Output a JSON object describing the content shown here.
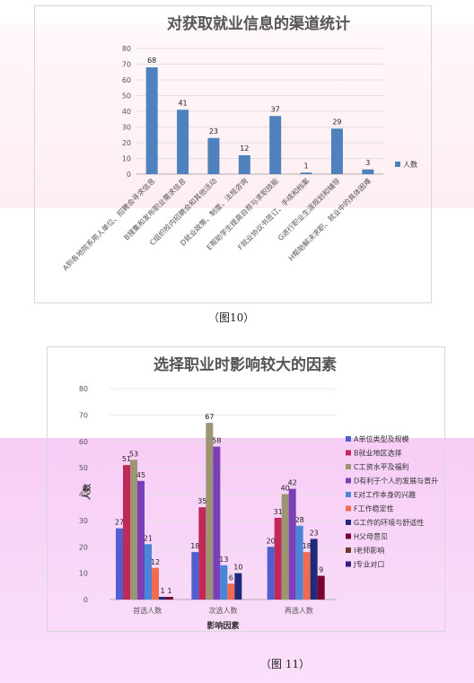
{
  "figure1": {
    "caption": "（图10）",
    "chart_data": {
      "type": "bar",
      "title": "对获取就业信息的渠道统计",
      "categories": [
        "A到各地院系用人单位、招聘会寻求信息",
        "B搜集和发布职业需求信息",
        "C组织校内招聘会和其他活动",
        "D就业政策、制度、法规咨询",
        "E帮助学生提高自荐与求职技能",
        "F就业协议书签订、手续和档案",
        "G进行职业生涯规划和辅导",
        "H帮助解决求职、就业中的具体困难"
      ],
      "series": [
        {
          "name": "人数",
          "values": [
            68,
            41,
            23,
            12,
            37,
            1,
            29,
            3
          ],
          "color": "#4f81bd"
        }
      ],
      "ylim": [
        0,
        80
      ],
      "yticks": [
        0,
        10,
        20,
        30,
        40,
        50,
        60,
        70,
        80
      ],
      "grid": true,
      "legend": "right"
    }
  },
  "figure2": {
    "caption": "（图 11）",
    "chart_data": {
      "type": "bar",
      "title": "选择职业时影响较大的因素",
      "categories": [
        "首选人数",
        "次选人数",
        "再选人数"
      ],
      "xlabel": "影响因素",
      "ylabel": "人数",
      "ylim": [
        0,
        80
      ],
      "yticks": [
        0,
        10,
        20,
        30,
        40,
        50,
        60,
        70,
        80
      ],
      "legend": "right",
      "series": [
        {
          "name": "A单位类型及规模",
          "color": "#4f5fcf",
          "values": [
            27,
            18,
            20
          ]
        },
        {
          "name": "B就业地区选择",
          "color": "#c0285a",
          "values": [
            51,
            35,
            31
          ]
        },
        {
          "name": "C工资水平及福利",
          "color": "#9c9472",
          "values": [
            53,
            67,
            40
          ]
        },
        {
          "name": "D有利于个人的发展与晋升",
          "color": "#7b3fb8",
          "values": [
            45,
            58,
            42
          ]
        },
        {
          "name": "E对工作本身的兴趣",
          "color": "#4a86d8",
          "values": [
            21,
            13,
            28
          ]
        },
        {
          "name": "F工作稳定性",
          "color": "#f26a4f",
          "values": [
            12,
            6,
            18
          ]
        },
        {
          "name": "G工作的环境与舒适性",
          "color": "#1f2a78",
          "values": [
            1,
            10,
            23
          ]
        },
        {
          "name": "H父母意见",
          "color": "#7a0030",
          "values": [
            1,
            null,
            9
          ]
        },
        {
          "name": "I老师影响",
          "color": "#6b3a2a",
          "values": [
            null,
            null,
            null
          ]
        },
        {
          "name": "J专业对口",
          "color": "#3a1a7a",
          "values": [
            null,
            null,
            null
          ]
        }
      ],
      "overflow_bar": {
        "label": "67",
        "partial_label": "58"
      }
    }
  }
}
